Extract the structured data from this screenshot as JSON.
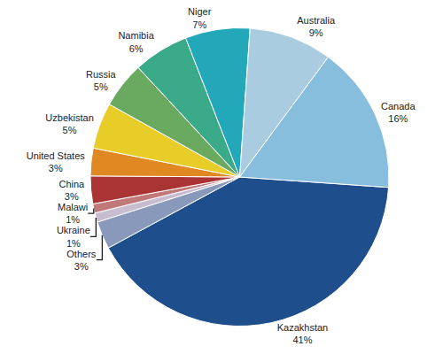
{
  "chart_data": {
    "type": "pie",
    "categories": [
      "Kazakhstan",
      "Others",
      "Ukraine",
      "Malawi",
      "China",
      "United States",
      "Uzbekistan",
      "Russia",
      "Namibia",
      "Niger",
      "Australia",
      "Canada"
    ],
    "values": [
      41,
      3,
      1,
      1,
      3,
      3,
      5,
      5,
      6,
      7,
      9,
      16
    ],
    "value_labels": [
      "41%",
      "3%",
      "1%",
      "1%",
      "3%",
      "3%",
      "5%",
      "5%",
      "6%",
      "7%",
      "9%",
      "16%"
    ],
    "colors": [
      "#1e4f8c",
      "#8899bb",
      "#c8bcd0",
      "#c07878",
      "#aa3333",
      "#e08822",
      "#e8cc28",
      "#6aaa60",
      "#3aaa88",
      "#22a8b8",
      "#aacce0",
      "#88bedd"
    ],
    "data_labels": true
  }
}
